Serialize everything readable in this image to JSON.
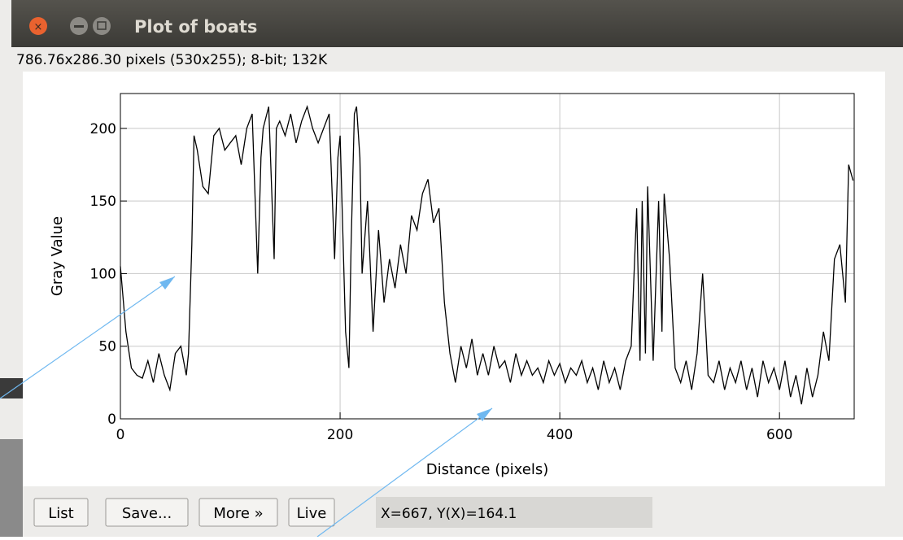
{
  "window": {
    "title": "Plot of boats"
  },
  "info": "786.76x286.30 pixels (530x255); 8-bit; 132K",
  "chart_data": {
    "type": "line",
    "xlabel": "Distance (pixels)",
    "ylabel": "Gray Value",
    "color": "#000000",
    "grid": true,
    "xlim": [
      0,
      668
    ],
    "ylim": [
      0,
      224
    ],
    "xticks": [
      0,
      200,
      400,
      600
    ],
    "yticks": [
      0,
      50,
      100,
      150,
      200
    ],
    "x": [
      0,
      5,
      10,
      15,
      20,
      25,
      30,
      35,
      40,
      45,
      50,
      55,
      60,
      62,
      65,
      67,
      70,
      75,
      80,
      85,
      90,
      95,
      100,
      105,
      110,
      115,
      120,
      125,
      128,
      130,
      135,
      140,
      142,
      145,
      150,
      155,
      160,
      165,
      170,
      175,
      180,
      185,
      190,
      195,
      198,
      200,
      205,
      208,
      210,
      213,
      215,
      218,
      220,
      225,
      230,
      235,
      240,
      245,
      250,
      255,
      260,
      265,
      270,
      275,
      280,
      285,
      290,
      295,
      300,
      305,
      310,
      315,
      320,
      325,
      330,
      335,
      340,
      345,
      350,
      355,
      360,
      365,
      370,
      375,
      380,
      385,
      390,
      395,
      400,
      405,
      410,
      415,
      420,
      425,
      430,
      435,
      440,
      445,
      450,
      455,
      460,
      465,
      470,
      473,
      475,
      478,
      480,
      485,
      490,
      493,
      495,
      500,
      505,
      510,
      515,
      520,
      525,
      530,
      533,
      535,
      540,
      545,
      550,
      555,
      560,
      565,
      570,
      575,
      580,
      585,
      590,
      595,
      600,
      605,
      610,
      615,
      620,
      625,
      630,
      635,
      640,
      645,
      650,
      655,
      660,
      663,
      667
    ],
    "values": [
      105,
      60,
      35,
      30,
      28,
      40,
      25,
      45,
      30,
      20,
      45,
      50,
      30,
      45,
      120,
      195,
      185,
      160,
      155,
      195,
      200,
      185,
      190,
      195,
      175,
      200,
      210,
      100,
      180,
      200,
      215,
      110,
      200,
      205,
      195,
      210,
      190,
      205,
      215,
      200,
      190,
      200,
      210,
      110,
      180,
      195,
      60,
      35,
      120,
      210,
      215,
      180,
      100,
      150,
      60,
      130,
      80,
      110,
      90,
      120,
      100,
      140,
      130,
      155,
      165,
      135,
      145,
      80,
      45,
      25,
      50,
      35,
      55,
      30,
      45,
      30,
      50,
      35,
      40,
      25,
      45,
      30,
      40,
      30,
      35,
      25,
      40,
      30,
      38,
      25,
      35,
      30,
      40,
      25,
      35,
      20,
      40,
      25,
      35,
      20,
      40,
      50,
      145,
      40,
      150,
      45,
      160,
      40,
      150,
      60,
      155,
      110,
      35,
      25,
      40,
      20,
      45,
      100,
      60,
      30,
      25,
      40,
      20,
      35,
      25,
      40,
      20,
      35,
      15,
      40,
      25,
      35,
      20,
      40,
      15,
      30,
      10,
      35,
      15,
      30,
      60,
      40,
      110,
      120,
      80,
      175,
      164.1
    ]
  },
  "buttons": [
    "List",
    "Save...",
    "More »",
    "Live"
  ],
  "status": "X=667,  Y(X)=164.1"
}
